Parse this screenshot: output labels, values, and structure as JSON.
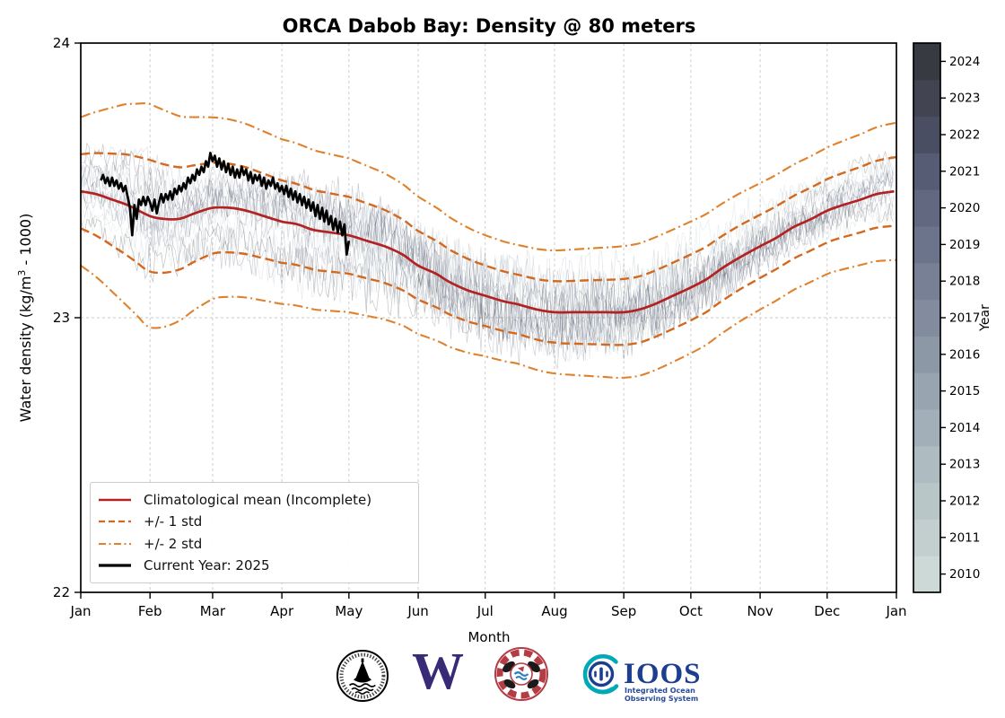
{
  "title": "ORCA Dabob Bay: Density @ 80 meters",
  "axes": {
    "xlabel": "Month",
    "ylabel_prefix": "Water density (kg/m",
    "ylabel_sup": "3",
    "ylabel_suffix": " - 1000)",
    "x_ticks": [
      "Jan",
      "Feb",
      "Mar",
      "Apr",
      "May",
      "Jun",
      "Jul",
      "Aug",
      "Sep",
      "Oct",
      "Nov",
      "Dec",
      "Jan"
    ],
    "y_ticks": [
      {
        "label": "24",
        "value": 24
      },
      {
        "label": "23",
        "value": 23
      },
      {
        "label": "22",
        "value": 22
      }
    ]
  },
  "legend": {
    "items": [
      {
        "label": "Climatological mean (Incomplete)",
        "color": "#b22222",
        "style": "solid"
      },
      {
        "label": "+/- 1 std",
        "color": "#d2691e",
        "style": "dashed"
      },
      {
        "label": "+/- 2 std",
        "color": "#e0812c",
        "style": "dashdot"
      },
      {
        "label": "Current Year: 2025",
        "color": "#000000",
        "style": "solid-thick"
      }
    ]
  },
  "colorbar": {
    "label": "Year",
    "years": [
      "2010",
      "2011",
      "2012",
      "2013",
      "2014",
      "2015",
      "2016",
      "2017",
      "2018",
      "2019",
      "2020",
      "2021",
      "2022",
      "2023",
      "2024"
    ],
    "colors": [
      "#cdd9d7",
      "#c3cfce",
      "#b9c6c8",
      "#aebbc0",
      "#a3afb8",
      "#98a4af",
      "#8d98a7",
      "#828c9e",
      "#778095",
      "#6c748b",
      "#616880",
      "#565c74",
      "#4a4e63",
      "#424551",
      "#383a42"
    ]
  },
  "logos": {
    "ioos": {
      "name": "IOOS",
      "sub1": "Integrated Ocean",
      "sub2": "Observing System"
    },
    "uw": {
      "letter": "W"
    }
  },
  "chart_data": {
    "type": "line",
    "title": "ORCA Dabob Bay: Density @ 80 meters",
    "xlabel": "Month",
    "ylabel": "Water density (kg/m3 - 1000)",
    "x_unit": "day_of_year",
    "xlim": [
      1,
      366
    ],
    "ylim": [
      22,
      24
    ],
    "y_gridlines": [
      23
    ],
    "month_tick_days": [
      1,
      32,
      60,
      91,
      121,
      152,
      182,
      213,
      244,
      274,
      305,
      335,
      366
    ],
    "current_year": "2025",
    "colors": {
      "mean": "#b22222",
      "std1": "#d2691e",
      "std2": "#e0812c",
      "current": "#000000",
      "grid": "#c9c9c9"
    },
    "climatological_mean_points": [
      [
        1,
        23.46
      ],
      [
        8,
        23.45
      ],
      [
        15,
        23.43
      ],
      [
        22,
        23.41
      ],
      [
        32,
        23.37
      ],
      [
        38,
        23.36
      ],
      [
        45,
        23.36
      ],
      [
        52,
        23.38
      ],
      [
        60,
        23.4
      ],
      [
        68,
        23.4
      ],
      [
        75,
        23.39
      ],
      [
        83,
        23.37
      ],
      [
        91,
        23.35
      ],
      [
        98,
        23.34
      ],
      [
        105,
        23.32
      ],
      [
        113,
        23.31
      ],
      [
        121,
        23.3
      ],
      [
        129,
        23.28
      ],
      [
        137,
        23.26
      ],
      [
        145,
        23.23
      ],
      [
        152,
        23.19
      ],
      [
        160,
        23.16
      ],
      [
        166,
        23.13
      ],
      [
        174,
        23.1
      ],
      [
        182,
        23.08
      ],
      [
        190,
        23.06
      ],
      [
        196,
        23.05
      ],
      [
        205,
        23.03
      ],
      [
        213,
        23.02
      ],
      [
        221,
        23.02
      ],
      [
        228,
        23.02
      ],
      [
        236,
        23.02
      ],
      [
        244,
        23.02
      ],
      [
        251,
        23.03
      ],
      [
        258,
        23.05
      ],
      [
        266,
        23.08
      ],
      [
        274,
        23.11
      ],
      [
        281,
        23.14
      ],
      [
        288,
        23.18
      ],
      [
        296,
        23.22
      ],
      [
        305,
        23.26
      ],
      [
        312,
        23.29
      ],
      [
        320,
        23.33
      ],
      [
        328,
        23.36
      ],
      [
        335,
        23.39
      ],
      [
        342,
        23.41
      ],
      [
        350,
        23.43
      ],
      [
        357,
        23.45
      ],
      [
        365,
        23.46
      ]
    ],
    "std_points": [
      [
        1,
        0.135
      ],
      [
        10,
        0.155
      ],
      [
        20,
        0.18
      ],
      [
        32,
        0.205
      ],
      [
        40,
        0.195
      ],
      [
        50,
        0.178
      ],
      [
        60,
        0.165
      ],
      [
        75,
        0.158
      ],
      [
        91,
        0.15
      ],
      [
        105,
        0.145
      ],
      [
        121,
        0.14
      ],
      [
        137,
        0.133
      ],
      [
        152,
        0.125
      ],
      [
        166,
        0.118
      ],
      [
        182,
        0.11
      ],
      [
        196,
        0.108
      ],
      [
        213,
        0.112
      ],
      [
        228,
        0.116
      ],
      [
        244,
        0.12
      ],
      [
        258,
        0.121
      ],
      [
        274,
        0.12
      ],
      [
        288,
        0.118
      ],
      [
        305,
        0.115
      ],
      [
        320,
        0.114
      ],
      [
        335,
        0.115
      ],
      [
        350,
        0.119
      ],
      [
        365,
        0.125
      ]
    ],
    "current_year_points": [
      [
        10,
        23.5
      ],
      [
        11,
        23.52
      ],
      [
        12,
        23.49
      ],
      [
        13,
        23.51
      ],
      [
        14,
        23.48
      ],
      [
        15,
        23.51
      ],
      [
        16,
        23.48
      ],
      [
        17,
        23.5
      ],
      [
        18,
        23.47
      ],
      [
        19,
        23.49
      ],
      [
        20,
        23.46
      ],
      [
        21,
        23.48
      ],
      [
        22,
        23.44
      ],
      [
        23,
        23.4
      ],
      [
        24,
        23.3
      ],
      [
        25,
        23.41
      ],
      [
        26,
        23.36
      ],
      [
        27,
        23.43
      ],
      [
        28,
        23.41
      ],
      [
        29,
        23.44
      ],
      [
        30,
        23.41
      ],
      [
        31,
        23.44
      ],
      [
        32,
        23.42
      ],
      [
        33,
        23.39
      ],
      [
        34,
        23.43
      ],
      [
        35,
        23.38
      ],
      [
        36,
        23.42
      ],
      [
        37,
        23.45
      ],
      [
        38,
        23.42
      ],
      [
        39,
        23.45
      ],
      [
        40,
        23.43
      ],
      [
        41,
        23.46
      ],
      [
        42,
        23.43
      ],
      [
        43,
        23.47
      ],
      [
        44,
        23.45
      ],
      [
        45,
        23.48
      ],
      [
        46,
        23.46
      ],
      [
        47,
        23.49
      ],
      [
        48,
        23.47
      ],
      [
        49,
        23.51
      ],
      [
        50,
        23.49
      ],
      [
        51,
        23.52
      ],
      [
        52,
        23.5
      ],
      [
        53,
        23.54
      ],
      [
        54,
        23.52
      ],
      [
        55,
        23.55
      ],
      [
        56,
        23.53
      ],
      [
        57,
        23.57
      ],
      [
        58,
        23.55
      ],
      [
        59,
        23.6
      ],
      [
        60,
        23.57
      ],
      [
        61,
        23.59
      ],
      [
        62,
        23.55
      ],
      [
        63,
        23.58
      ],
      [
        64,
        23.54
      ],
      [
        65,
        23.57
      ],
      [
        66,
        23.53
      ],
      [
        67,
        23.56
      ],
      [
        68,
        23.52
      ],
      [
        69,
        23.55
      ],
      [
        70,
        23.51
      ],
      [
        71,
        23.54
      ],
      [
        72,
        23.51
      ],
      [
        73,
        23.55
      ],
      [
        74,
        23.52
      ],
      [
        75,
        23.54
      ],
      [
        76,
        23.5
      ],
      [
        77,
        23.53
      ],
      [
        78,
        23.49
      ],
      [
        79,
        23.52
      ],
      [
        80,
        23.5
      ],
      [
        81,
        23.52
      ],
      [
        82,
        23.48
      ],
      [
        83,
        23.51
      ],
      [
        84,
        23.47
      ],
      [
        85,
        23.5
      ],
      [
        86,
        23.48
      ],
      [
        87,
        23.51
      ],
      [
        88,
        23.47
      ],
      [
        89,
        23.49
      ],
      [
        90,
        23.46
      ],
      [
        91,
        23.48
      ],
      [
        92,
        23.45
      ],
      [
        93,
        23.48
      ],
      [
        94,
        23.44
      ],
      [
        95,
        23.47
      ],
      [
        96,
        23.43
      ],
      [
        97,
        23.46
      ],
      [
        98,
        23.42
      ],
      [
        99,
        23.45
      ],
      [
        100,
        23.41
      ],
      [
        101,
        23.44
      ],
      [
        102,
        23.4
      ],
      [
        103,
        23.43
      ],
      [
        104,
        23.39
      ],
      [
        105,
        23.42
      ],
      [
        106,
        23.37
      ],
      [
        107,
        23.41
      ],
      [
        108,
        23.36
      ],
      [
        109,
        23.4
      ],
      [
        110,
        23.35
      ],
      [
        111,
        23.39
      ],
      [
        112,
        23.34
      ],
      [
        113,
        23.37
      ],
      [
        114,
        23.32
      ],
      [
        115,
        23.36
      ],
      [
        116,
        23.31
      ],
      [
        117,
        23.35
      ],
      [
        118,
        23.3
      ],
      [
        119,
        23.34
      ],
      [
        120,
        23.23
      ],
      [
        121,
        23.28
      ]
    ]
  }
}
